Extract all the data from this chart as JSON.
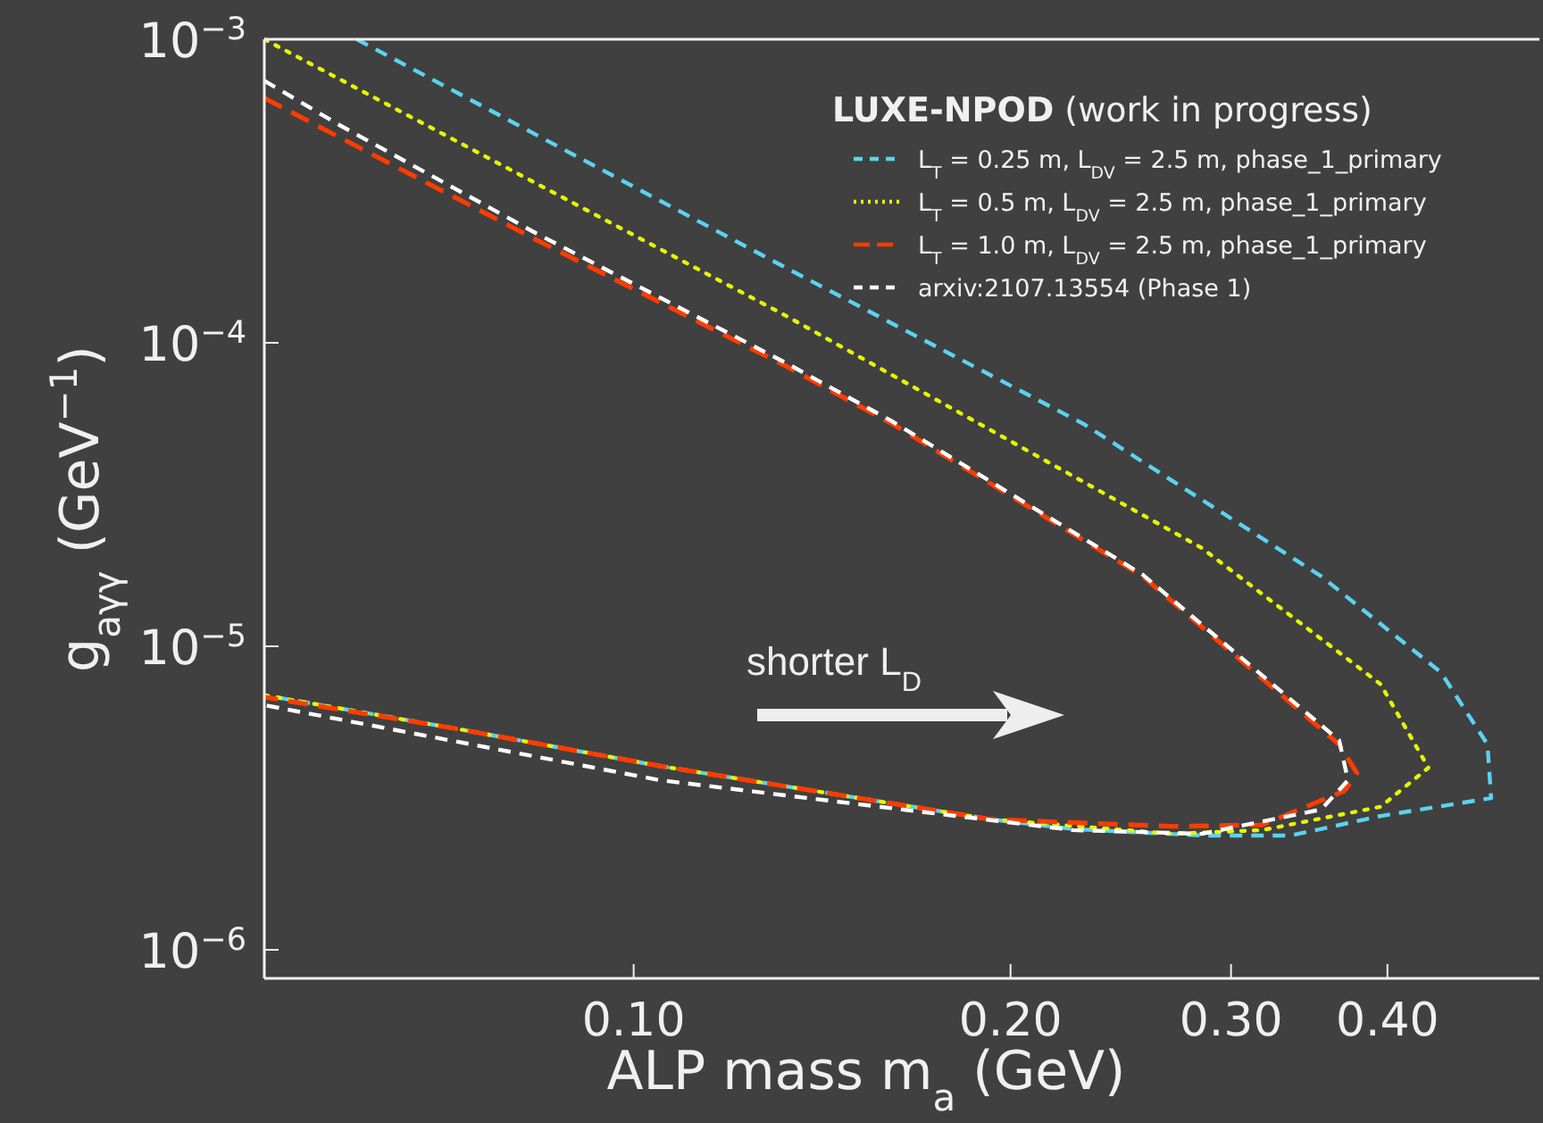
{
  "chart_data": {
    "type": "line",
    "xlabel": "ALP mass m$_{a}$ (GeV)",
    "ylabel": "g$_{aγγ}$ (GeV$^{−1}$)",
    "legend_title": "LUXE-NPOD (work in progress)",
    "log": "xy",
    "grid": false,
    "legend": "top right",
    "xlim": [
      0.0507,
      0.529
    ],
    "ylim": [
      8.05e-07,
      0.001
    ],
    "xticks": [
      {
        "value": 0.1,
        "label": "0.10"
      },
      {
        "value": 0.2,
        "label": "0.20"
      },
      {
        "value": 0.3,
        "label": "0.30"
      },
      {
        "value": 0.4,
        "label": "0.40"
      }
    ],
    "yticks": [
      {
        "value": 1e-06,
        "label": "10$^{−6}$"
      },
      {
        "value": 1e-05,
        "label": "10$^{−5}$"
      },
      {
        "value": 0.0001,
        "label": "10$^{−4}$"
      },
      {
        "value": 0.001,
        "label": "10$^{−3}$"
      }
    ],
    "annotations": [
      "shorter L$_{D}$"
    ],
    "series": [
      {
        "name": "L$_{T}$ = 0.25 m, L$_{DV}$ = 2.5 m, phase_1_primary",
        "color": "#5bd2f0",
        "line_style": "dashed",
        "x": [
          0.0601,
          0.1322,
          0.2288,
          0.3542,
          0.4414,
          0.4808,
          0.484,
          0.395,
          0.335,
          0.2842,
          0.2243,
          0.1929,
          0.105,
          0.072,
          0.0507
        ],
        "values": [
          0.001,
          0.000177,
          5.4e-05,
          1.7e-05,
          8.2e-06,
          4.75e-06,
          3.16e-06,
          2.76e-06,
          2.38e-06,
          2.38e-06,
          2.5e-06,
          2.69e-06,
          4.03e-06,
          5.36e-06,
          6.9e-06
        ]
      },
      {
        "name": "L$_{T}$ = 0.5 m, L$_{DV}$ = 2.5 m, phase_1_primary",
        "color": "#e6f500",
        "line_style": "dotted",
        "x": [
          0.0507,
          0.1322,
          0.2842,
          0.395,
          0.4313,
          0.395,
          0.3178,
          0.2697,
          0.1929,
          0.105,
          0.072,
          0.0507
        ],
        "values": [
          0.001,
          0.000123,
          2.11e-05,
          7.5e-06,
          3.98e-06,
          2.96e-06,
          2.48e-06,
          2.41e-06,
          2.69e-06,
          4.03e-06,
          5.36e-06,
          6.9e-06
        ]
      },
      {
        "name": "L$_{T}$ = 1.0 m, L$_{DV}$ = 2.5 m, phase_1_primary",
        "color": "#ff3c00",
        "line_style": "dashed",
        "x": [
          0.0507,
          0.0835,
          0.1322,
          0.161,
          0.2551,
          0.366,
          0.3782,
          0.3696,
          0.3178,
          0.2697,
          0.1929,
          0.105,
          0.072,
          0.0507
        ],
        "values": [
          0.00064,
          0.000219,
          8.4e-05,
          5.4e-05,
          1.7e-05,
          4.75e-06,
          3.82e-06,
          3.34e-06,
          2.58e-06,
          2.55e-06,
          2.69e-06,
          4.03e-06,
          5.36e-06,
          6.8e-06
        ]
      },
      {
        "name": "arxiv:2107.13554 (Phase 1)",
        "color": "#ffffff",
        "line_style": "dashed",
        "x": [
          0.0507,
          0.0582,
          0.0835,
          0.1322,
          0.161,
          0.2551,
          0.366,
          0.372,
          0.3542,
          0.2842,
          0.2243,
          0.105,
          0.0507
        ],
        "values": [
          0.00073,
          0.000522,
          0.00023,
          8.6e-05,
          5.5e-05,
          1.72e-05,
          4.9e-06,
          3.62e-06,
          2.9e-06,
          2.41e-06,
          2.48e-06,
          3.62e-06,
          6.4e-06
        ]
      }
    ]
  }
}
